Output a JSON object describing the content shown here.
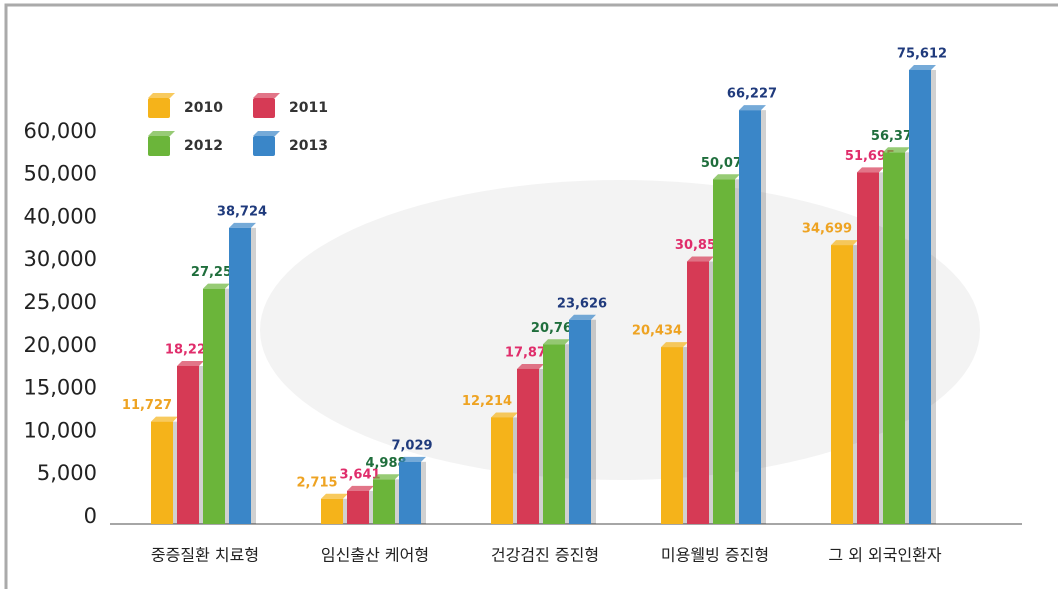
{
  "chart_data": {
    "type": "bar",
    "categories": [
      "중증질환 치료형",
      "임신출산 케어형",
      "건강검진 증진형",
      "미용웰빙 증진형",
      "그 외 외국인환자"
    ],
    "series": [
      {
        "name": "2010",
        "color": "#f5b31a",
        "label_color": "#eea322",
        "values": [
          11727,
          2715,
          12214,
          20434,
          34699
        ],
        "value_labels": [
          "11,727",
          "2,715",
          "12,214",
          "20,434",
          "34,699"
        ]
      },
      {
        "name": "2011",
        "color": "#d63a55",
        "label_color": "#e02d6b",
        "values": [
          18224,
          3641,
          17878,
          30859,
          51695
        ],
        "value_labels": [
          "18,224",
          "3,641",
          "17,878",
          "30,859",
          "51,695"
        ]
      },
      {
        "name": "2012",
        "color": "#6bb53a",
        "label_color": "#1f6e3c",
        "values": [
          27257,
          4988,
          20763,
          50079,
          56377
        ],
        "value_labels": [
          "27,257",
          "4,988",
          "20,763",
          "50,079",
          "56,377"
        ]
      },
      {
        "name": "2013",
        "color": "#3a86c8",
        "label_color": "#1f3a7c",
        "values": [
          38724,
          7029,
          23626,
          66227,
          75612
        ],
        "value_labels": [
          "38,724",
          "7,029",
          "23,626",
          "66,227",
          "75,612"
        ]
      }
    ],
    "ylim": [
      0,
      60000
    ],
    "yticks": [
      0,
      {
        "value": 5000,
        "label": "5,000"
      },
      {
        "value": 10000,
        "label": "10,000"
      },
      {
        "value": 15000,
        "label": "15,000"
      },
      {
        "value": 20000,
        "label": "20,000"
      },
      {
        "value": 25000,
        "label": "25,000"
      },
      {
        "value": 30000,
        "label": "30,000"
      },
      {
        "value": 40000,
        "label": "40,000"
      },
      {
        "value": 50000,
        "label": "50,000"
      },
      {
        "value": 60000,
        "label": "60,000"
      }
    ],
    "grid": false,
    "legend": "upper left"
  }
}
